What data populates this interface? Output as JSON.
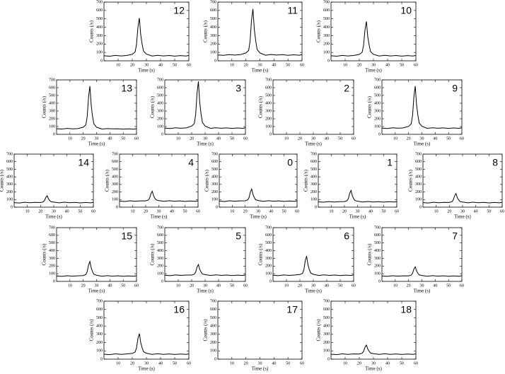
{
  "chart_data": [
    {
      "type": "line",
      "title": "12",
      "xlabel": "Time (s)",
      "ylabel": "Counts (/s)",
      "xlim": [
        0,
        60
      ],
      "ylim": [
        0,
        700
      ],
      "xticks": [
        10,
        20,
        30,
        40,
        50,
        60
      ],
      "yticks": [
        0,
        100,
        200,
        300,
        400,
        500,
        600,
        700
      ],
      "color": "#000000",
      "x": [
        0,
        4,
        8,
        12,
        16,
        20,
        22,
        23,
        24,
        25,
        26,
        27,
        28,
        30,
        34,
        38,
        42,
        46,
        50,
        54,
        58,
        60
      ],
      "values": [
        60,
        55,
        64,
        58,
        63,
        78,
        105,
        195,
        398,
        510,
        308,
        195,
        114,
        80,
        57,
        65,
        58,
        63,
        56,
        62,
        57,
        64
      ]
    },
    {
      "type": "line",
      "title": "11",
      "xlabel": "Time (s)",
      "ylabel": "Counts (/s)",
      "xlim": [
        0,
        60
      ],
      "ylim": [
        0,
        700
      ],
      "xticks": [
        10,
        20,
        30,
        40,
        50,
        60
      ],
      "yticks": [
        0,
        100,
        200,
        300,
        400,
        500,
        600,
        700
      ],
      "color": "#000000",
      "x": [
        0,
        4,
        8,
        12,
        16,
        20,
        22,
        23,
        24,
        25,
        26,
        27,
        28,
        30,
        34,
        38,
        42,
        46,
        50,
        54,
        58,
        60
      ],
      "values": [
        70,
        65,
        74,
        68,
        73,
        94,
        125,
        235,
        483,
        620,
        373,
        235,
        136,
        94,
        67,
        75,
        68,
        73,
        66,
        72,
        67,
        74
      ]
    },
    {
      "type": "line",
      "title": "10",
      "xlabel": "Time (s)",
      "ylabel": "Counts (/s)",
      "xlim": [
        0,
        60
      ],
      "ylim": [
        0,
        700
      ],
      "xticks": [
        10,
        20,
        30,
        40,
        50,
        60
      ],
      "yticks": [
        0,
        100,
        200,
        300,
        400,
        500,
        600,
        700
      ],
      "color": "#000000",
      "x": [
        0,
        4,
        8,
        12,
        16,
        20,
        22,
        23,
        24,
        25,
        26,
        27,
        28,
        30,
        34,
        38,
        42,
        46,
        50,
        54,
        58,
        60
      ],
      "values": [
        60,
        55,
        64,
        58,
        63,
        77,
        101,
        183,
        368,
        470,
        286,
        183,
        109,
        78,
        57,
        65,
        58,
        63,
        56,
        62,
        57,
        64
      ]
    },
    {
      "type": "line",
      "title": "13",
      "xlabel": "Time (s)",
      "ylabel": "Counts (/s)",
      "xlim": [
        0,
        60
      ],
      "ylim": [
        0,
        700
      ],
      "xticks": [
        10,
        20,
        30,
        40,
        50,
        60
      ],
      "yticks": [
        0,
        100,
        200,
        300,
        400,
        500,
        600,
        700
      ],
      "color": "#000000",
      "x": [
        0,
        4,
        8,
        12,
        16,
        20,
        22,
        23,
        24,
        25,
        26,
        27,
        28,
        30,
        34,
        38,
        42,
        46,
        50,
        54,
        58,
        60
      ],
      "values": [
        72,
        68,
        76,
        70,
        74,
        92,
        122,
        230,
        480,
        620,
        370,
        232,
        135,
        92,
        68,
        74,
        70,
        72,
        67,
        71,
        66,
        73
      ]
    },
    {
      "type": "line",
      "title": "3",
      "xlabel": "Time (s)",
      "ylabel": "Counts (/s)",
      "xlim": [
        0,
        60
      ],
      "ylim": [
        0,
        700
      ],
      "xticks": [
        10,
        20,
        30,
        40,
        50,
        60
      ],
      "yticks": [
        0,
        100,
        200,
        300,
        400,
        500,
        600,
        700
      ],
      "color": "#000000",
      "x": [
        0,
        4,
        8,
        12,
        16,
        20,
        22,
        23,
        24,
        25,
        26,
        27,
        28,
        30,
        34,
        38,
        42,
        46,
        50,
        54,
        58,
        60
      ],
      "values": [
        80,
        75,
        84,
        78,
        83,
        106,
        140,
        260,
        530,
        680,
        410,
        260,
        152,
        106,
        77,
        85,
        78,
        83,
        76,
        82,
        77,
        84
      ]
    },
    {
      "type": "line",
      "title": "2",
      "xlabel": "Time (s)",
      "ylabel": "Counts (/s)",
      "xlim": [
        0,
        60
      ],
      "ylim": [
        0,
        700
      ],
      "xticks": [
        10,
        20,
        30,
        40,
        50,
        60
      ],
      "yticks": [
        0,
        100,
        200,
        300,
        400,
        500,
        600,
        700
      ]
    },
    {
      "type": "line",
      "title": "9",
      "xlabel": "Time (s)",
      "ylabel": "Counts (/s)",
      "xlim": [
        0,
        60
      ],
      "ylim": [
        0,
        700
      ],
      "xticks": [
        10,
        20,
        30,
        40,
        50,
        60
      ],
      "yticks": [
        0,
        100,
        200,
        300,
        400,
        500,
        600,
        700
      ],
      "color": "#000000",
      "x": [
        0,
        4,
        8,
        12,
        16,
        20,
        22,
        23,
        24,
        25,
        26,
        27,
        28,
        30,
        34,
        38,
        42,
        46,
        50,
        54,
        58,
        60
      ],
      "values": [
        80,
        75,
        84,
        78,
        83,
        103,
        134,
        242,
        485,
        620,
        377,
        242,
        145,
        104,
        77,
        85,
        78,
        83,
        76,
        82,
        77,
        84
      ]
    },
    {
      "type": "line",
      "title": "14",
      "xlabel": "Time (s)",
      "ylabel": "Counts (/s)",
      "xlim": [
        0,
        60
      ],
      "ylim": [
        0,
        700
      ],
      "xticks": [
        10,
        20,
        30,
        40,
        50,
        60
      ],
      "yticks": [
        0,
        100,
        200,
        300,
        400,
        500,
        600,
        700
      ],
      "color": "#000000",
      "x": [
        0,
        4,
        8,
        12,
        16,
        20,
        22,
        23,
        24,
        25,
        26,
        27,
        28,
        30,
        34,
        38,
        42,
        46,
        50,
        54,
        58,
        60
      ],
      "values": [
        60,
        55,
        64,
        58,
        63,
        61,
        69,
        87,
        128,
        150,
        110,
        87,
        71,
        66,
        57,
        65,
        58,
        63,
        56,
        62,
        57,
        64
      ]
    },
    {
      "type": "line",
      "title": "4",
      "xlabel": "Time (s)",
      "ylabel": "Counts (/s)",
      "xlim": [
        0,
        60
      ],
      "ylim": [
        0,
        700
      ],
      "xticks": [
        10,
        20,
        30,
        40,
        50,
        60
      ],
      "yticks": [
        0,
        100,
        200,
        300,
        400,
        500,
        600,
        700
      ],
      "color": "#000000",
      "x": [
        0,
        4,
        8,
        12,
        16,
        20,
        22,
        23,
        24,
        25,
        26,
        27,
        28,
        30,
        34,
        38,
        42,
        46,
        50,
        54,
        58,
        60
      ],
      "values": [
        80,
        75,
        84,
        78,
        83,
        83,
        93,
        119,
        178,
        210,
        152,
        119,
        96,
        87,
        77,
        85,
        78,
        83,
        76,
        82,
        77,
        84
      ]
    },
    {
      "type": "line",
      "title": "0",
      "xlabel": "Time (s)",
      "ylabel": "Counts (/s)",
      "xlim": [
        0,
        60
      ],
      "ylim": [
        0,
        700
      ],
      "xticks": [
        10,
        20,
        30,
        40,
        50,
        60
      ],
      "yticks": [
        0,
        100,
        200,
        300,
        400,
        500,
        600,
        700
      ],
      "color": "#000000",
      "x": [
        0,
        4,
        8,
        12,
        16,
        20,
        22,
        23,
        24,
        25,
        26,
        27,
        28,
        30,
        34,
        38,
        42,
        46,
        50,
        54,
        58,
        60
      ],
      "values": [
        80,
        75,
        84,
        78,
        83,
        84,
        96,
        128,
        200,
        240,
        168,
        128,
        99,
        88,
        77,
        85,
        78,
        83,
        76,
        82,
        77,
        84
      ]
    },
    {
      "type": "line",
      "title": "1",
      "xlabel": "Time (s)",
      "ylabel": "Counts (/s)",
      "xlim": [
        0,
        60
      ],
      "ylim": [
        0,
        700
      ],
      "xticks": [
        10,
        20,
        30,
        40,
        50,
        60
      ],
      "yticks": [
        0,
        100,
        200,
        300,
        400,
        500,
        600,
        700
      ],
      "color": "#000000",
      "x": [
        0,
        4,
        8,
        12,
        16,
        20,
        22,
        23,
        24,
        25,
        26,
        27,
        28,
        30,
        34,
        38,
        42,
        46,
        50,
        54,
        58,
        60
      ],
      "values": [
        70,
        65,
        74,
        68,
        73,
        74,
        85,
        115,
        183,
        220,
        153,
        115,
        88,
        78,
        67,
        75,
        68,
        73,
        66,
        72,
        67,
        74
      ]
    },
    {
      "type": "line",
      "title": "8",
      "xlabel": "Time (s)",
      "ylabel": "Counts (/s)",
      "xlim": [
        0,
        60
      ],
      "ylim": [
        0,
        700
      ],
      "xticks": [
        10,
        20,
        30,
        40,
        50,
        60
      ],
      "yticks": [
        0,
        100,
        200,
        300,
        400,
        500,
        600,
        700
      ],
      "color": "#000000",
      "x": [
        0,
        4,
        8,
        12,
        16,
        20,
        22,
        23,
        24,
        25,
        26,
        27,
        28,
        30,
        34,
        38,
        42,
        46,
        50,
        54,
        58,
        60
      ],
      "values": [
        60,
        55,
        64,
        58,
        63,
        62,
        72,
        96,
        150,
        180,
        126,
        96,
        74,
        67,
        57,
        65,
        58,
        63,
        56,
        62,
        57,
        64
      ]
    },
    {
      "type": "line",
      "title": "15",
      "xlabel": "Time (s)",
      "ylabel": "Counts (/s)",
      "xlim": [
        0,
        60
      ],
      "ylim": [
        0,
        700
      ],
      "xticks": [
        10,
        20,
        30,
        40,
        50,
        60
      ],
      "yticks": [
        0,
        100,
        200,
        300,
        400,
        500,
        600,
        700
      ],
      "color": "#000000",
      "x": [
        0,
        4,
        8,
        12,
        16,
        20,
        22,
        23,
        24,
        25,
        26,
        27,
        28,
        30,
        34,
        38,
        42,
        46,
        50,
        54,
        58,
        60
      ],
      "values": [
        70,
        65,
        74,
        68,
        73,
        76,
        89,
        127,
        213,
        260,
        175,
        127,
        93,
        80,
        67,
        75,
        68,
        73,
        66,
        72,
        67,
        74
      ]
    },
    {
      "type": "line",
      "title": "5",
      "xlabel": "Time (s)",
      "ylabel": "Counts (/s)",
      "xlim": [
        0,
        60
      ],
      "ylim": [
        0,
        700
      ],
      "xticks": [
        10,
        20,
        30,
        40,
        50,
        60
      ],
      "yticks": [
        0,
        100,
        200,
        300,
        400,
        500,
        600,
        700
      ],
      "color": "#000000",
      "x": [
        0,
        4,
        8,
        12,
        16,
        20,
        22,
        23,
        24,
        25,
        26,
        27,
        28,
        30,
        34,
        38,
        42,
        46,
        50,
        54,
        58,
        60
      ],
      "values": [
        80,
        75,
        84,
        78,
        83,
        83,
        94,
        122,
        185,
        220,
        157,
        122,
        97,
        88,
        77,
        85,
        78,
        83,
        76,
        82,
        77,
        84
      ]
    },
    {
      "type": "line",
      "title": "6",
      "xlabel": "Time (s)",
      "ylabel": "Counts (/s)",
      "xlim": [
        0,
        60
      ],
      "ylim": [
        0,
        700
      ],
      "xticks": [
        10,
        20,
        30,
        40,
        50,
        60
      ],
      "yticks": [
        0,
        100,
        200,
        300,
        400,
        500,
        600,
        700
      ],
      "color": "#000000",
      "x": [
        0,
        4,
        8,
        12,
        16,
        20,
        22,
        23,
        24,
        25,
        26,
        27,
        28,
        30,
        34,
        38,
        42,
        46,
        50,
        54,
        58,
        60
      ],
      "values": [
        80,
        75,
        84,
        78,
        83,
        89,
        105,
        155,
        268,
        330,
        218,
        155,
        110,
        92,
        77,
        85,
        78,
        83,
        76,
        82,
        77,
        84
      ]
    },
    {
      "type": "line",
      "title": "7",
      "xlabel": "Time (s)",
      "ylabel": "Counts (/s)",
      "xlim": [
        0,
        60
      ],
      "ylim": [
        0,
        700
      ],
      "xticks": [
        10,
        20,
        30,
        40,
        50,
        60
      ],
      "yticks": [
        0,
        100,
        200,
        300,
        400,
        500,
        600,
        700
      ],
      "color": "#000000",
      "x": [
        0,
        4,
        8,
        12,
        16,
        20,
        22,
        23,
        24,
        25,
        26,
        27,
        28,
        30,
        34,
        38,
        42,
        46,
        50,
        54,
        58,
        60
      ],
      "values": [
        70,
        65,
        74,
        68,
        73,
        72,
        82,
        106,
        160,
        190,
        136,
        106,
        84,
        77,
        67,
        75,
        68,
        73,
        66,
        72,
        67,
        74
      ]
    },
    {
      "type": "line",
      "title": "16",
      "xlabel": "Time (s)",
      "ylabel": "Counts (/s)",
      "xlim": [
        0,
        60
      ],
      "ylim": [
        0,
        700
      ],
      "xticks": [
        10,
        20,
        30,
        40,
        50,
        60
      ],
      "yticks": [
        0,
        100,
        200,
        300,
        400,
        500,
        600,
        700
      ],
      "color": "#000000",
      "x": [
        0,
        4,
        8,
        12,
        16,
        20,
        22,
        23,
        24,
        25,
        26,
        27,
        28,
        30,
        34,
        38,
        42,
        46,
        50,
        54,
        58,
        60
      ],
      "values": [
        60,
        55,
        64,
        58,
        63,
        69,
        85,
        135,
        248,
        310,
        198,
        135,
        90,
        72,
        57,
        65,
        58,
        63,
        56,
        62,
        57,
        64
      ]
    },
    {
      "type": "line",
      "title": "17",
      "xlabel": "Time (s)",
      "ylabel": "Counts (/s)",
      "xlim": [
        0,
        60
      ],
      "ylim": [
        0,
        700
      ],
      "xticks": [
        10,
        20,
        30,
        40,
        50,
        60
      ],
      "yticks": [
        0,
        100,
        200,
        300,
        400,
        500,
        600,
        700
      ]
    },
    {
      "type": "line",
      "title": "18",
      "xlabel": "Time (s)",
      "ylabel": "Counts (/s)",
      "xlim": [
        0,
        60
      ],
      "ylim": [
        0,
        700
      ],
      "xticks": [
        10,
        20,
        30,
        40,
        50,
        60
      ],
      "yticks": [
        0,
        100,
        200,
        300,
        400,
        500,
        600,
        700
      ],
      "color": "#000000",
      "x": [
        0,
        4,
        8,
        12,
        16,
        20,
        22,
        23,
        24,
        25,
        26,
        27,
        28,
        30,
        34,
        38,
        42,
        46,
        50,
        54,
        58,
        60
      ],
      "values": [
        60,
        55,
        64,
        58,
        63,
        62,
        71,
        93,
        143,
        170,
        121,
        93,
        73,
        66,
        57,
        65,
        58,
        63,
        56,
        62,
        57,
        64
      ]
    }
  ]
}
